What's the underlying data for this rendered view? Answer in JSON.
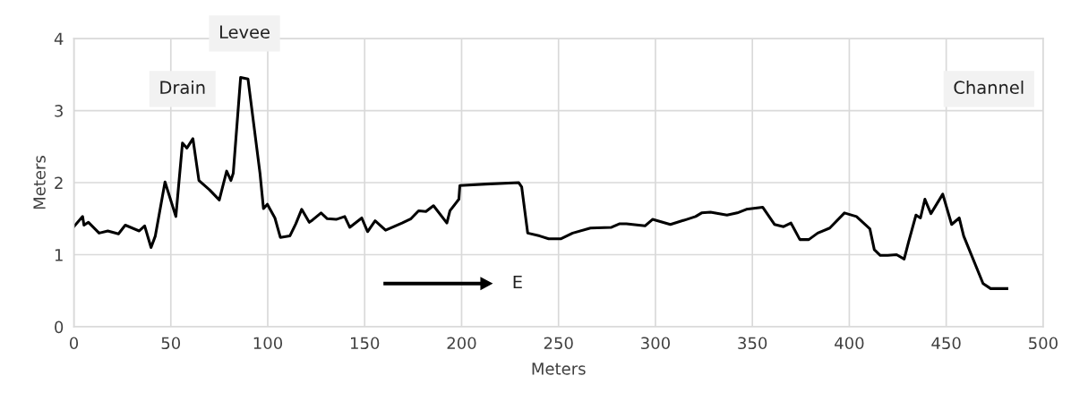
{
  "chart_data": {
    "type": "line",
    "xlabel": "Meters",
    "ylabel": "Meters",
    "xlim": [
      0,
      500
    ],
    "xticks": [
      0,
      50,
      100,
      150,
      200,
      250,
      300,
      350,
      400,
      450,
      500
    ],
    "ylim": [
      0,
      4
    ],
    "yticks": [
      0,
      1,
      2,
      3,
      4
    ],
    "grid": true,
    "marker": "none",
    "line_style": "solid",
    "annotations": [
      "Drain",
      "Levee",
      "Channel",
      "E"
    ],
    "series": [
      {
        "color": "#000000",
        "x": [
          0,
          4.5,
          5.2,
          7.5,
          13,
          17.5,
          23,
          26.5,
          33.7,
          36.5,
          39.8,
          42,
          47,
          52.6,
          56,
          58.3,
          61.4,
          64.5,
          70,
          75,
          78.8,
          81,
          82.2,
          86,
          89.8,
          96,
          97.8,
          99.8,
          103.7,
          106.5,
          111.4,
          114.5,
          117.5,
          121.4,
          123,
          127.5,
          130.7,
          135.3,
          139.7,
          142.3,
          148.5,
          151.5,
          155.4,
          160.8,
          169.3,
          173.9,
          177.8,
          181.6,
          185.5,
          192.4,
          194,
          198.6,
          199.1,
          212.5,
          229.5,
          231,
          234.1,
          240.3,
          244.9,
          251.1,
          257.3,
          266.5,
          277.3,
          281.6,
          285,
          294.6,
          298.5,
          307.7,
          316.1,
          320.7,
          323.8,
          328.4,
          336.9,
          342.2,
          346.9,
          355.3,
          361.4,
          366.1,
          369.9,
          374.5,
          379.1,
          383.7,
          389.9,
          397.5,
          403.7,
          410.6,
          412.9,
          416,
          419.8,
          424.4,
          428.3,
          430.6,
          434.4,
          436.7,
          439,
          442.1,
          448.2,
          452.8,
          456.7,
          459,
          469,
          472.9,
          481.3
        ],
        "values": [
          1.39,
          1.53,
          1.41,
          1.45,
          1.3,
          1.33,
          1.29,
          1.41,
          1.33,
          1.4,
          1.1,
          1.26,
          2.01,
          1.53,
          2.55,
          2.48,
          2.61,
          2.03,
          1.9,
          1.76,
          2.16,
          2.03,
          2.13,
          3.46,
          3.44,
          2.13,
          1.64,
          1.7,
          1.51,
          1.24,
          1.26,
          1.43,
          1.63,
          1.45,
          1.48,
          1.58,
          1.5,
          1.49,
          1.53,
          1.38,
          1.51,
          1.32,
          1.47,
          1.34,
          1.44,
          1.5,
          1.61,
          1.6,
          1.68,
          1.44,
          1.61,
          1.77,
          1.96,
          1.98,
          2.0,
          1.94,
          1.3,
          1.26,
          1.22,
          1.22,
          1.3,
          1.37,
          1.38,
          1.43,
          1.43,
          1.4,
          1.49,
          1.42,
          1.49,
          1.53,
          1.58,
          1.59,
          1.55,
          1.58,
          1.63,
          1.66,
          1.42,
          1.39,
          1.44,
          1.21,
          1.21,
          1.3,
          1.37,
          1.58,
          1.53,
          1.36,
          1.07,
          0.99,
          0.99,
          1.0,
          0.94,
          1.18,
          1.55,
          1.51,
          1.77,
          1.57,
          1.84,
          1.42,
          1.51,
          1.26,
          0.6,
          0.53,
          0.53
        ]
      }
    ]
  }
}
